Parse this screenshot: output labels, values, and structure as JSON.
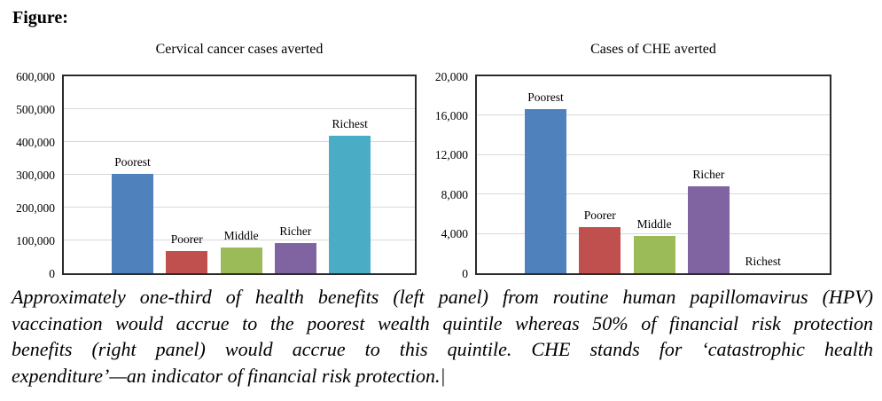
{
  "heading": "Figure:",
  "colors": {
    "bars": [
      "#4F81BD",
      "#C0504D",
      "#9BBB59",
      "#8064A2",
      "#4BACC6"
    ],
    "gridline": "#D9D9D9",
    "plot_border": "#2B2B2B",
    "text": "#000000"
  },
  "chart_data": [
    {
      "type": "bar",
      "title": "Cervical cancer cases averted",
      "categories": [
        "Poorest",
        "Poorer",
        "Middle",
        "Richer",
        "Richest"
      ],
      "values": [
        303000,
        68000,
        78000,
        92000,
        420000
      ],
      "xlabel": "",
      "ylabel": "",
      "ylim": [
        0,
        600000
      ],
      "ytick_labels": [
        "0",
        "100,000",
        "200,000",
        "300,000",
        "400,000",
        "500,000",
        "600,000"
      ],
      "grid": true,
      "legend": "none"
    },
    {
      "type": "bar",
      "title": "Cases of CHE averted",
      "categories": [
        "Poorest",
        "Poorer",
        "Middle",
        "Richer",
        "Richest"
      ],
      "values": [
        16700,
        4700,
        3800,
        8800,
        0
      ],
      "xlabel": "",
      "ylabel": "",
      "ylim": [
        0,
        20000
      ],
      "ytick_labels": [
        "0",
        "4,000",
        "8,000",
        "12,000",
        "16,000",
        "20,000"
      ],
      "grid": true,
      "legend": "none"
    }
  ],
  "caption": {
    "lines": [
      "Approximately one-third of health benefits (left panel) from routine human papillomavirus (HPV)",
      "vaccination would accrue to the poorest wealth quintile whereas 50% of financial risk protection",
      "benefits (right panel) would accrue to this quintile. CHE stands for ‘catastrophic health",
      "expenditure’—an indicator of financial risk protection.|"
    ]
  }
}
